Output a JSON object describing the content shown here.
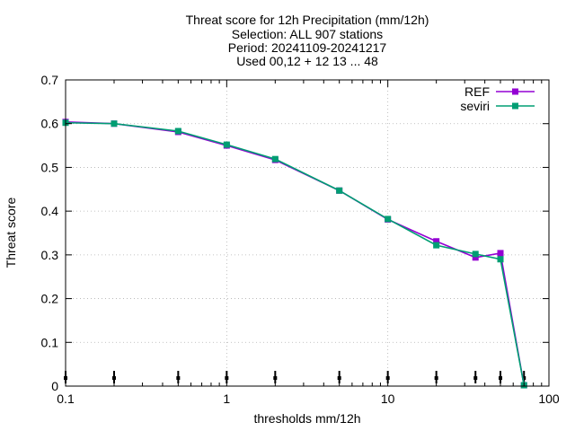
{
  "chart_data": {
    "type": "line",
    "title_lines": [
      "Threat score  for 12h Precipitation (mm/12h)",
      "Selection: ALL    907 stations",
      "Period: 20241109-20241217",
      "Used 00,12 + 12 13 ... 48"
    ],
    "xlabel": "thresholds mm/12h",
    "ylabel": "Threat score",
    "x_scale": "log",
    "xlim": [
      0.1,
      100
    ],
    "ylim": [
      0,
      0.7
    ],
    "x_ticks": [
      {
        "value": 0.1,
        "label": "0.1"
      },
      {
        "value": 1,
        "label": "1"
      },
      {
        "value": 10,
        "label": "10"
      },
      {
        "value": 100,
        "label": "100"
      }
    ],
    "y_ticks": [
      {
        "value": 0,
        "label": "0"
      },
      {
        "value": 0.1,
        "label": "0.1"
      },
      {
        "value": 0.2,
        "label": "0.2"
      },
      {
        "value": 0.3,
        "label": "0.3"
      },
      {
        "value": 0.4,
        "label": "0.4"
      },
      {
        "value": 0.5,
        "label": "0.5"
      },
      {
        "value": 0.6,
        "label": "0.6"
      },
      {
        "value": 0.7,
        "label": "0.7"
      }
    ],
    "grid": true,
    "legend_position": "top-right",
    "x": [
      0.1,
      0.2,
      0.5,
      1,
      2,
      5,
      10,
      20,
      35,
      50,
      70
    ],
    "threshold_markers": [
      0.1,
      0.2,
      0.5,
      1,
      2,
      5,
      10,
      20,
      35,
      50,
      70
    ],
    "series": [
      {
        "name": "REF",
        "color": "#9400d3",
        "marker": "square",
        "values": [
          0.604,
          0.6,
          0.581,
          0.55,
          0.517,
          0.447,
          0.381,
          0.331,
          0.294,
          0.304,
          0.002
        ]
      },
      {
        "name": "seviri",
        "color": "#009e73",
        "marker": "square",
        "values": [
          0.602,
          0.6,
          0.583,
          0.552,
          0.519,
          0.447,
          0.382,
          0.322,
          0.302,
          0.29,
          0.002
        ]
      }
    ]
  }
}
